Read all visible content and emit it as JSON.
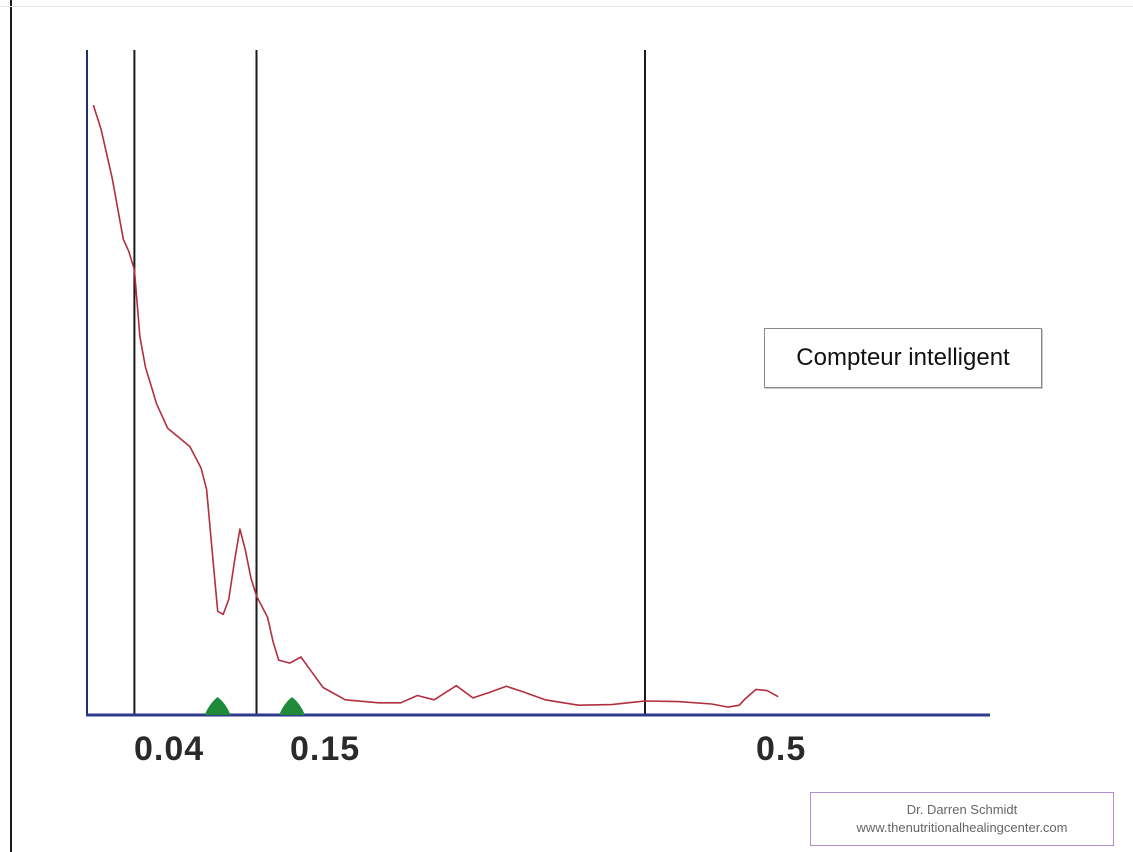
{
  "chart_data": {
    "type": "line",
    "xlim": [
      0,
      0.6
    ],
    "ylim": [
      0,
      100
    ],
    "band_boundaries": [
      0.04,
      0.15,
      0.5
    ],
    "tick_labels": [
      "0.04",
      "0.15",
      "0.5"
    ],
    "series": [
      {
        "color": "#b03040",
        "points": [
          [
            0.003,
            100
          ],
          [
            0.01,
            96
          ],
          [
            0.02,
            88
          ],
          [
            0.03,
            78
          ],
          [
            0.035,
            76
          ],
          [
            0.04,
            73
          ],
          [
            0.045,
            62
          ],
          [
            0.05,
            57
          ],
          [
            0.055,
            54
          ],
          [
            0.06,
            51
          ],
          [
            0.07,
            47
          ],
          [
            0.08,
            45.5
          ],
          [
            0.09,
            44
          ],
          [
            0.1,
            40.5
          ],
          [
            0.105,
            37
          ],
          [
            0.11,
            27
          ],
          [
            0.115,
            17
          ],
          [
            0.12,
            16.5
          ],
          [
            0.125,
            19
          ],
          [
            0.13,
            25
          ],
          [
            0.135,
            30.5
          ],
          [
            0.14,
            27
          ],
          [
            0.145,
            22.5
          ],
          [
            0.15,
            19.5
          ],
          [
            0.16,
            16
          ],
          [
            0.165,
            12
          ],
          [
            0.17,
            9
          ],
          [
            0.18,
            8.5
          ],
          [
            0.19,
            9.5
          ],
          [
            0.2,
            7
          ],
          [
            0.21,
            4.5
          ],
          [
            0.23,
            2.5
          ],
          [
            0.26,
            2
          ],
          [
            0.28,
            2
          ],
          [
            0.295,
            3.2
          ],
          [
            0.31,
            2.5
          ],
          [
            0.33,
            4.8
          ],
          [
            0.345,
            2.8
          ],
          [
            0.36,
            3.7
          ],
          [
            0.375,
            4.7
          ],
          [
            0.39,
            3.8
          ],
          [
            0.41,
            2.5
          ],
          [
            0.44,
            1.6
          ],
          [
            0.47,
            1.7
          ],
          [
            0.5,
            2.3
          ],
          [
            0.53,
            2.2
          ],
          [
            0.56,
            1.8
          ],
          [
            0.575,
            1.3
          ],
          [
            0.585,
            1.6
          ],
          [
            0.59,
            2.6
          ],
          [
            0.6,
            4.2
          ],
          [
            0.61,
            4.0
          ],
          [
            0.62,
            3.0
          ]
        ]
      }
    ],
    "markers": [
      {
        "x": 0.115,
        "color": "#1f8a3a"
      },
      {
        "x": 0.182,
        "color": "#1f8a3a"
      }
    ]
  },
  "axis_color": "#2e3a8c",
  "annotation": {
    "text": "Compteur intelligent"
  },
  "credit": {
    "name": "Dr. Darren Schmidt",
    "site": "www.thenutritionalhealingcenter.com"
  }
}
